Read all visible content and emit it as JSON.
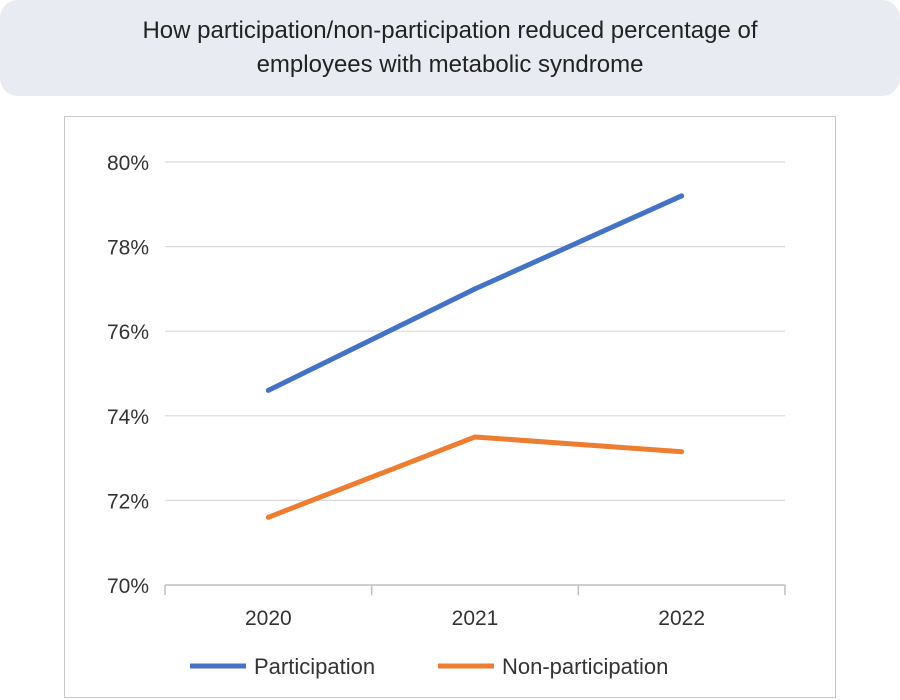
{
  "title": "How participation/non-participation reduced percentage of employees with metabolic syndrome",
  "chart_data": {
    "type": "line",
    "title": "How participation/non-participation reduced percentage of employees with metabolic syndrome",
    "categories": [
      "2020",
      "2021",
      "2022"
    ],
    "series": [
      {
        "name": "Participation",
        "color": "#4472c4",
        "values": [
          74.6,
          77.0,
          79.2
        ]
      },
      {
        "name": "Non-participation",
        "color": "#ed7d31",
        "values": [
          71.6,
          73.5,
          73.15
        ]
      }
    ],
    "ylim": [
      70,
      80
    ],
    "yticks": [
      70,
      72,
      74,
      76,
      78,
      80
    ],
    "ytick_labels": [
      "70%",
      "72%",
      "74%",
      "76%",
      "78%",
      "80%"
    ],
    "xlabel": "",
    "ylabel": "",
    "grid": true,
    "legend": "bottom"
  }
}
